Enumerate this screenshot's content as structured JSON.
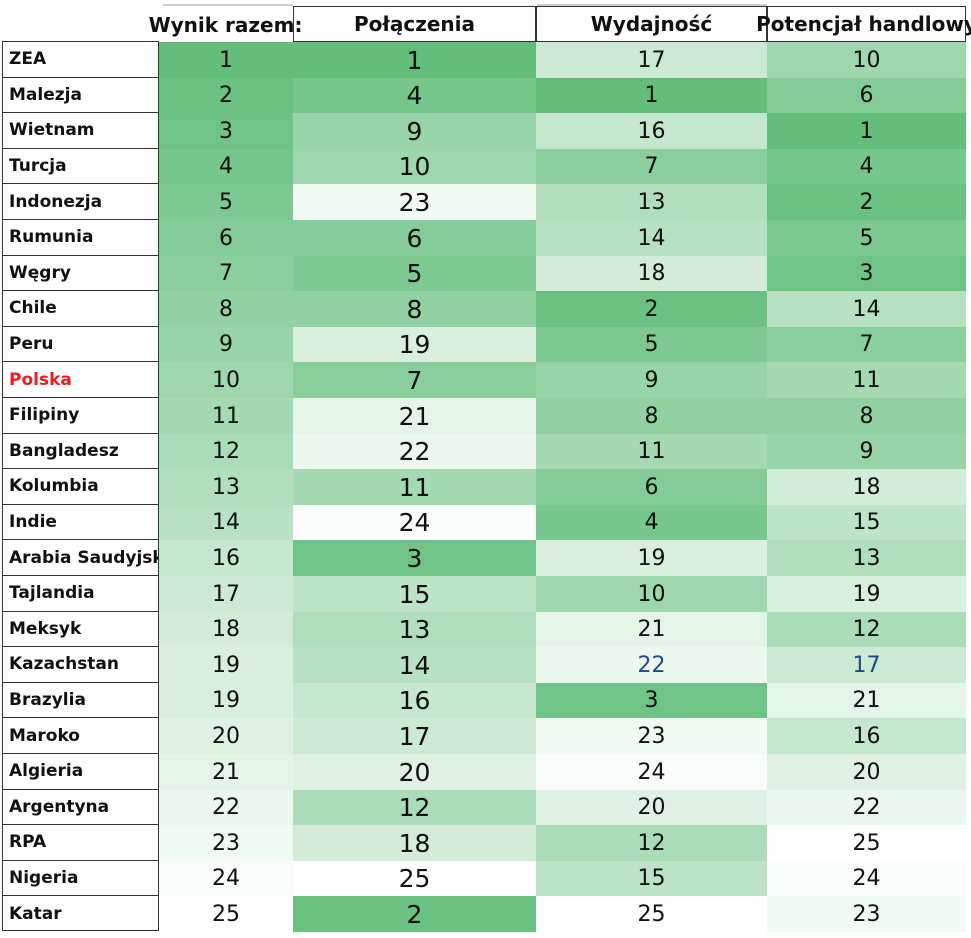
{
  "headers": {
    "overall": "Wynik razem:",
    "connections": "Połączenia",
    "performance": "Wydajność",
    "trade_potential": "Potencjał handlowy"
  },
  "highlight_row": "Polska",
  "colors": {
    "green_dark": "#63be7b",
    "green_light": "#ffffff",
    "highlight_text": "#ee1c1c",
    "blue_text": "#1d4a8c"
  },
  "chart_data": {
    "type": "heatmap",
    "columns": [
      "Wynik razem:",
      "Połączenia",
      "Wydajność",
      "Potencjał handlowy"
    ],
    "rows": [
      {
        "country": "ZEA",
        "overall": 1,
        "connections": 1,
        "performance": 17,
        "trade_potential": 10
      },
      {
        "country": "Malezja",
        "overall": 2,
        "connections": 4,
        "performance": 1,
        "trade_potential": 6
      },
      {
        "country": "Wietnam",
        "overall": 3,
        "connections": 9,
        "performance": 16,
        "trade_potential": 1
      },
      {
        "country": "Turcja",
        "overall": 4,
        "connections": 10,
        "performance": 7,
        "trade_potential": 4
      },
      {
        "country": "Indonezja",
        "overall": 5,
        "connections": 23,
        "performance": 13,
        "trade_potential": 2
      },
      {
        "country": "Rumunia",
        "overall": 6,
        "connections": 6,
        "performance": 14,
        "trade_potential": 5
      },
      {
        "country": "Węgry",
        "overall": 7,
        "connections": 5,
        "performance": 18,
        "trade_potential": 3
      },
      {
        "country": "Chile",
        "overall": 8,
        "connections": 8,
        "performance": 2,
        "trade_potential": 14
      },
      {
        "country": "Peru",
        "overall": 9,
        "connections": 19,
        "performance": 5,
        "trade_potential": 7
      },
      {
        "country": "Polska",
        "overall": 10,
        "connections": 7,
        "performance": 9,
        "trade_potential": 11
      },
      {
        "country": "Filipiny",
        "overall": 11,
        "connections": 21,
        "performance": 8,
        "trade_potential": 8
      },
      {
        "country": "Bangladesz",
        "overall": 12,
        "connections": 22,
        "performance": 11,
        "trade_potential": 9
      },
      {
        "country": "Kolumbia",
        "overall": 13,
        "connections": 11,
        "performance": 6,
        "trade_potential": 18
      },
      {
        "country": "Indie",
        "overall": 14,
        "connections": 24,
        "performance": 4,
        "trade_potential": 15
      },
      {
        "country": "Arabia Saudyjska",
        "overall": 16,
        "connections": 3,
        "performance": 19,
        "trade_potential": 13
      },
      {
        "country": "Tajlandia",
        "overall": 17,
        "connections": 15,
        "performance": 10,
        "trade_potential": 19
      },
      {
        "country": "Meksyk",
        "overall": 18,
        "connections": 13,
        "performance": 21,
        "trade_potential": 12
      },
      {
        "country": "Kazachstan",
        "overall": 19,
        "connections": 14,
        "performance": 22,
        "trade_potential": 17
      },
      {
        "country": "Brazylia",
        "overall": 19,
        "connections": 16,
        "performance": 3,
        "trade_potential": 21
      },
      {
        "country": "Maroko",
        "overall": 20,
        "connections": 17,
        "performance": 23,
        "trade_potential": 16
      },
      {
        "country": "Algieria",
        "overall": 21,
        "connections": 20,
        "performance": 24,
        "trade_potential": 20
      },
      {
        "country": "Argentyna",
        "overall": 22,
        "connections": 12,
        "performance": 20,
        "trade_potential": 22
      },
      {
        "country": "RPA",
        "overall": 23,
        "connections": 18,
        "performance": 12,
        "trade_potential": 25
      },
      {
        "country": "Nigeria",
        "overall": 24,
        "connections": 25,
        "performance": 15,
        "trade_potential": 24
      },
      {
        "country": "Katar",
        "overall": 25,
        "connections": 2,
        "performance": 25,
        "trade_potential": 23
      }
    ]
  }
}
